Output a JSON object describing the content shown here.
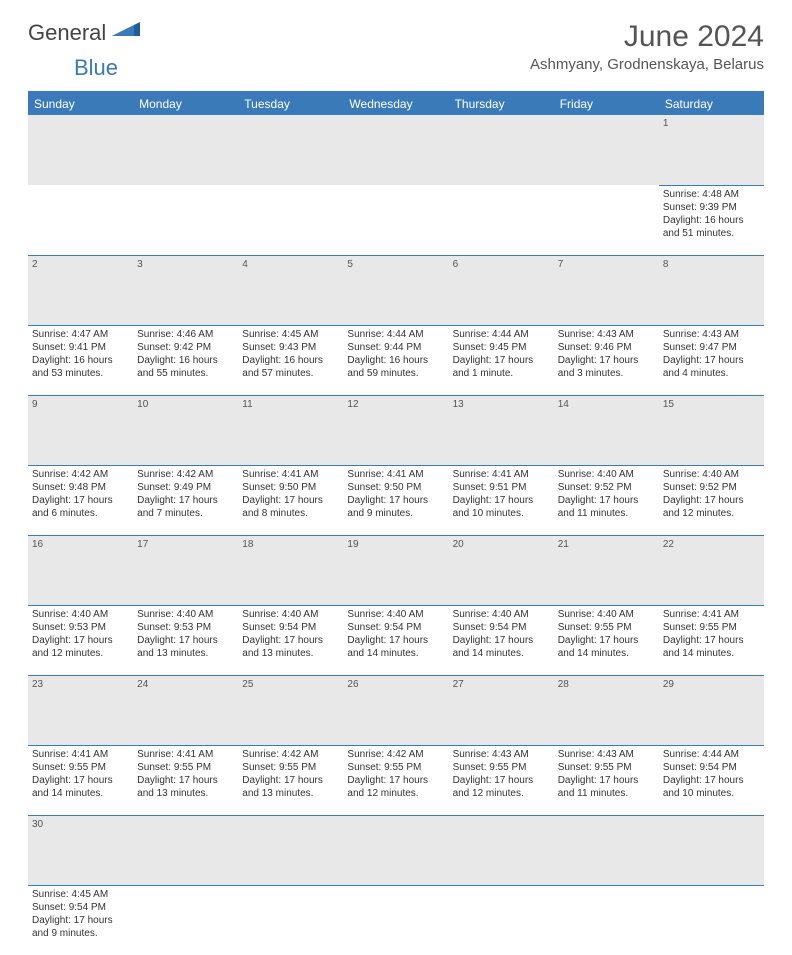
{
  "logo": {
    "general": "General",
    "blue": "Blue"
  },
  "title": "June 2024",
  "location": "Ashmyany, Grodnenskaya, Belarus",
  "colors": {
    "header_bg": "#3a7ab8",
    "header_text": "#ffffff",
    "daynum_bg": "#e8e8e8",
    "border": "#3a7ab8",
    "text": "#333333"
  },
  "daysOfWeek": [
    "Sunday",
    "Monday",
    "Tuesday",
    "Wednesday",
    "Thursday",
    "Friday",
    "Saturday"
  ],
  "weeks": [
    [
      null,
      null,
      null,
      null,
      null,
      null,
      {
        "n": "1",
        "sr": "Sunrise: 4:48 AM",
        "ss": "Sunset: 9:39 PM",
        "d1": "Daylight: 16 hours",
        "d2": "and 51 minutes."
      }
    ],
    [
      {
        "n": "2",
        "sr": "Sunrise: 4:47 AM",
        "ss": "Sunset: 9:41 PM",
        "d1": "Daylight: 16 hours",
        "d2": "and 53 minutes."
      },
      {
        "n": "3",
        "sr": "Sunrise: 4:46 AM",
        "ss": "Sunset: 9:42 PM",
        "d1": "Daylight: 16 hours",
        "d2": "and 55 minutes."
      },
      {
        "n": "4",
        "sr": "Sunrise: 4:45 AM",
        "ss": "Sunset: 9:43 PM",
        "d1": "Daylight: 16 hours",
        "d2": "and 57 minutes."
      },
      {
        "n": "5",
        "sr": "Sunrise: 4:44 AM",
        "ss": "Sunset: 9:44 PM",
        "d1": "Daylight: 16 hours",
        "d2": "and 59 minutes."
      },
      {
        "n": "6",
        "sr": "Sunrise: 4:44 AM",
        "ss": "Sunset: 9:45 PM",
        "d1": "Daylight: 17 hours",
        "d2": "and 1 minute."
      },
      {
        "n": "7",
        "sr": "Sunrise: 4:43 AM",
        "ss": "Sunset: 9:46 PM",
        "d1": "Daylight: 17 hours",
        "d2": "and 3 minutes."
      },
      {
        "n": "8",
        "sr": "Sunrise: 4:43 AM",
        "ss": "Sunset: 9:47 PM",
        "d1": "Daylight: 17 hours",
        "d2": "and 4 minutes."
      }
    ],
    [
      {
        "n": "9",
        "sr": "Sunrise: 4:42 AM",
        "ss": "Sunset: 9:48 PM",
        "d1": "Daylight: 17 hours",
        "d2": "and 6 minutes."
      },
      {
        "n": "10",
        "sr": "Sunrise: 4:42 AM",
        "ss": "Sunset: 9:49 PM",
        "d1": "Daylight: 17 hours",
        "d2": "and 7 minutes."
      },
      {
        "n": "11",
        "sr": "Sunrise: 4:41 AM",
        "ss": "Sunset: 9:50 PM",
        "d1": "Daylight: 17 hours",
        "d2": "and 8 minutes."
      },
      {
        "n": "12",
        "sr": "Sunrise: 4:41 AM",
        "ss": "Sunset: 9:50 PM",
        "d1": "Daylight: 17 hours",
        "d2": "and 9 minutes."
      },
      {
        "n": "13",
        "sr": "Sunrise: 4:41 AM",
        "ss": "Sunset: 9:51 PM",
        "d1": "Daylight: 17 hours",
        "d2": "and 10 minutes."
      },
      {
        "n": "14",
        "sr": "Sunrise: 4:40 AM",
        "ss": "Sunset: 9:52 PM",
        "d1": "Daylight: 17 hours",
        "d2": "and 11 minutes."
      },
      {
        "n": "15",
        "sr": "Sunrise: 4:40 AM",
        "ss": "Sunset: 9:52 PM",
        "d1": "Daylight: 17 hours",
        "d2": "and 12 minutes."
      }
    ],
    [
      {
        "n": "16",
        "sr": "Sunrise: 4:40 AM",
        "ss": "Sunset: 9:53 PM",
        "d1": "Daylight: 17 hours",
        "d2": "and 12 minutes."
      },
      {
        "n": "17",
        "sr": "Sunrise: 4:40 AM",
        "ss": "Sunset: 9:53 PM",
        "d1": "Daylight: 17 hours",
        "d2": "and 13 minutes."
      },
      {
        "n": "18",
        "sr": "Sunrise: 4:40 AM",
        "ss": "Sunset: 9:54 PM",
        "d1": "Daylight: 17 hours",
        "d2": "and 13 minutes."
      },
      {
        "n": "19",
        "sr": "Sunrise: 4:40 AM",
        "ss": "Sunset: 9:54 PM",
        "d1": "Daylight: 17 hours",
        "d2": "and 14 minutes."
      },
      {
        "n": "20",
        "sr": "Sunrise: 4:40 AM",
        "ss": "Sunset: 9:54 PM",
        "d1": "Daylight: 17 hours",
        "d2": "and 14 minutes."
      },
      {
        "n": "21",
        "sr": "Sunrise: 4:40 AM",
        "ss": "Sunset: 9:55 PM",
        "d1": "Daylight: 17 hours",
        "d2": "and 14 minutes."
      },
      {
        "n": "22",
        "sr": "Sunrise: 4:41 AM",
        "ss": "Sunset: 9:55 PM",
        "d1": "Daylight: 17 hours",
        "d2": "and 14 minutes."
      }
    ],
    [
      {
        "n": "23",
        "sr": "Sunrise: 4:41 AM",
        "ss": "Sunset: 9:55 PM",
        "d1": "Daylight: 17 hours",
        "d2": "and 14 minutes."
      },
      {
        "n": "24",
        "sr": "Sunrise: 4:41 AM",
        "ss": "Sunset: 9:55 PM",
        "d1": "Daylight: 17 hours",
        "d2": "and 13 minutes."
      },
      {
        "n": "25",
        "sr": "Sunrise: 4:42 AM",
        "ss": "Sunset: 9:55 PM",
        "d1": "Daylight: 17 hours",
        "d2": "and 13 minutes."
      },
      {
        "n": "26",
        "sr": "Sunrise: 4:42 AM",
        "ss": "Sunset: 9:55 PM",
        "d1": "Daylight: 17 hours",
        "d2": "and 12 minutes."
      },
      {
        "n": "27",
        "sr": "Sunrise: 4:43 AM",
        "ss": "Sunset: 9:55 PM",
        "d1": "Daylight: 17 hours",
        "d2": "and 12 minutes."
      },
      {
        "n": "28",
        "sr": "Sunrise: 4:43 AM",
        "ss": "Sunset: 9:55 PM",
        "d1": "Daylight: 17 hours",
        "d2": "and 11 minutes."
      },
      {
        "n": "29",
        "sr": "Sunrise: 4:44 AM",
        "ss": "Sunset: 9:54 PM",
        "d1": "Daylight: 17 hours",
        "d2": "and 10 minutes."
      }
    ],
    [
      {
        "n": "30",
        "sr": "Sunrise: 4:45 AM",
        "ss": "Sunset: 9:54 PM",
        "d1": "Daylight: 17 hours",
        "d2": "and 9 minutes."
      },
      null,
      null,
      null,
      null,
      null,
      null
    ]
  ]
}
